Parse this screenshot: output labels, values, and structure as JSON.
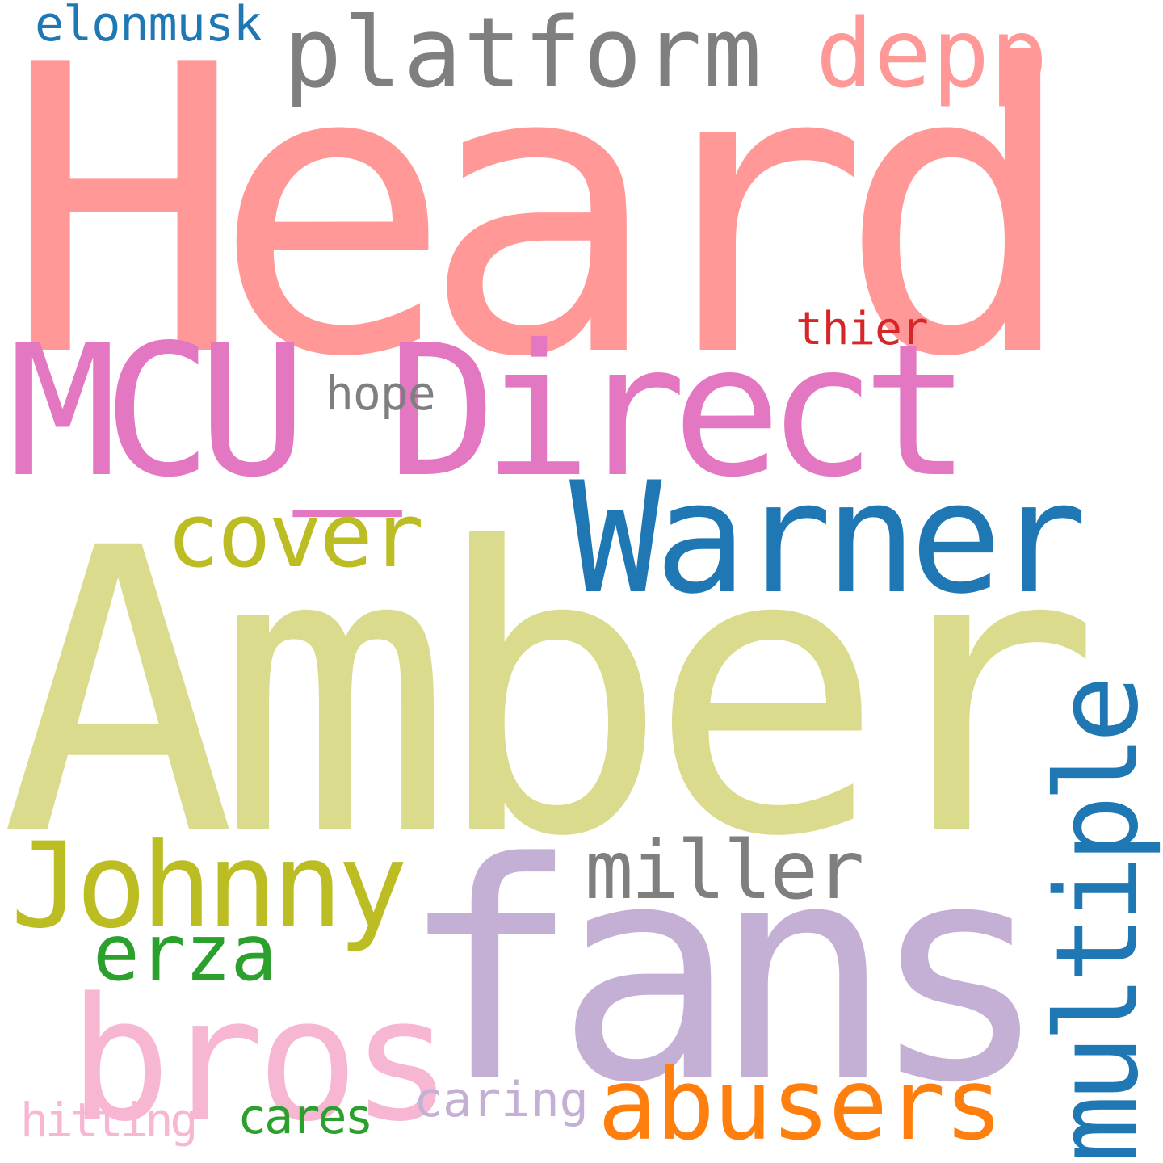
{
  "word_cloud": {
    "words": [
      {
        "text": "Heard",
        "color": "#ff9896"
      },
      {
        "text": "Amber",
        "color": "#dbdb8d"
      },
      {
        "text": "fans",
        "color": "#c5b0d5"
      },
      {
        "text": "MCU_Direct",
        "color": "#e377c2"
      },
      {
        "text": "Warner",
        "color": "#1f77b4"
      },
      {
        "text": "bros",
        "color": "#f7b6d2"
      },
      {
        "text": "Johnny",
        "color": "#bcbd22"
      },
      {
        "text": "multiple",
        "color": "#1f77b4"
      },
      {
        "text": "platform",
        "color": "#7f7f7f"
      },
      {
        "text": "abusers",
        "color": "#ff7f0e"
      },
      {
        "text": "cover",
        "color": "#bcbd22"
      },
      {
        "text": "depp",
        "color": "#ff9896"
      },
      {
        "text": "miller",
        "color": "#7f7f7f"
      },
      {
        "text": "erza",
        "color": "#2ca02c"
      },
      {
        "text": "elonmusk",
        "color": "#1f77b4"
      },
      {
        "text": "hope",
        "color": "#7f7f7f"
      },
      {
        "text": "thier",
        "color": "#d62728"
      },
      {
        "text": "hitting",
        "color": "#f7b6d2"
      },
      {
        "text": "cares",
        "color": "#2ca02c"
      },
      {
        "text": "caring",
        "color": "#c5b0d5"
      }
    ]
  }
}
